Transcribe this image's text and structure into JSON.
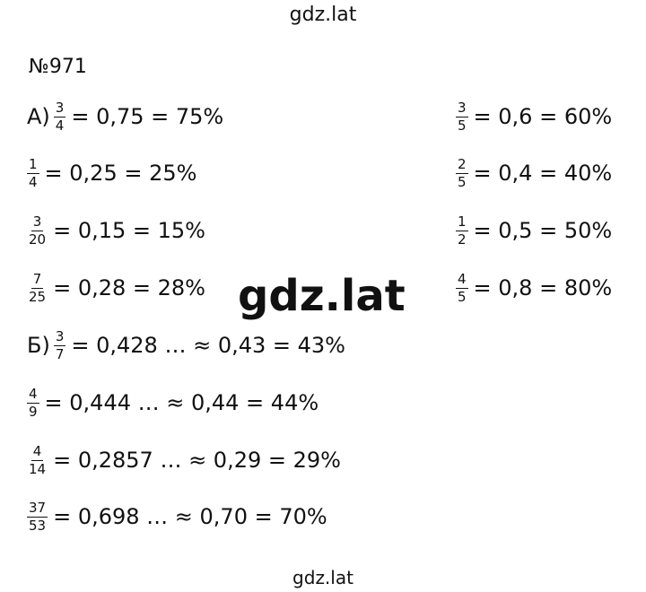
{
  "header": "gdz.lat",
  "title": "№971",
  "watermark": "gdz.lat",
  "footer": "gdz.lat",
  "left": [
    {
      "label": "А)",
      "num": "3",
      "den": "4",
      "rest": "= 0,75 = 75%"
    },
    {
      "num": "1",
      "den": "4",
      "rest": "= 0,25 = 25%"
    },
    {
      "num": "3",
      "den": "20",
      "rest": "= 0,15 = 15%"
    },
    {
      "num": "7",
      "den": "25",
      "rest": "= 0,28 = 28%"
    },
    {
      "label": "Б)",
      "num": "3",
      "den": "7",
      "rest": "= 0,428 … ≈ 0,43 = 43%"
    },
    {
      "num": "4",
      "den": "9",
      "rest": "= 0,444 … ≈ 0,44 = 44%"
    },
    {
      "num": "4",
      "den": "14",
      "rest": "= 0,2857 … ≈ 0,29 = 29%"
    },
    {
      "num": "37",
      "den": "53",
      "rest": "= 0,698 … ≈ 0,70 = 70%"
    }
  ],
  "right": [
    {
      "num": "3",
      "den": "5",
      "rest": "= 0,6 = 60%"
    },
    {
      "num": "2",
      "den": "5",
      "rest": "= 0,4 = 40%"
    },
    {
      "num": "1",
      "den": "2",
      "rest": "= 0,5 = 50%"
    },
    {
      "num": "4",
      "den": "5",
      "rest": "= 0,8 = 80%"
    }
  ]
}
